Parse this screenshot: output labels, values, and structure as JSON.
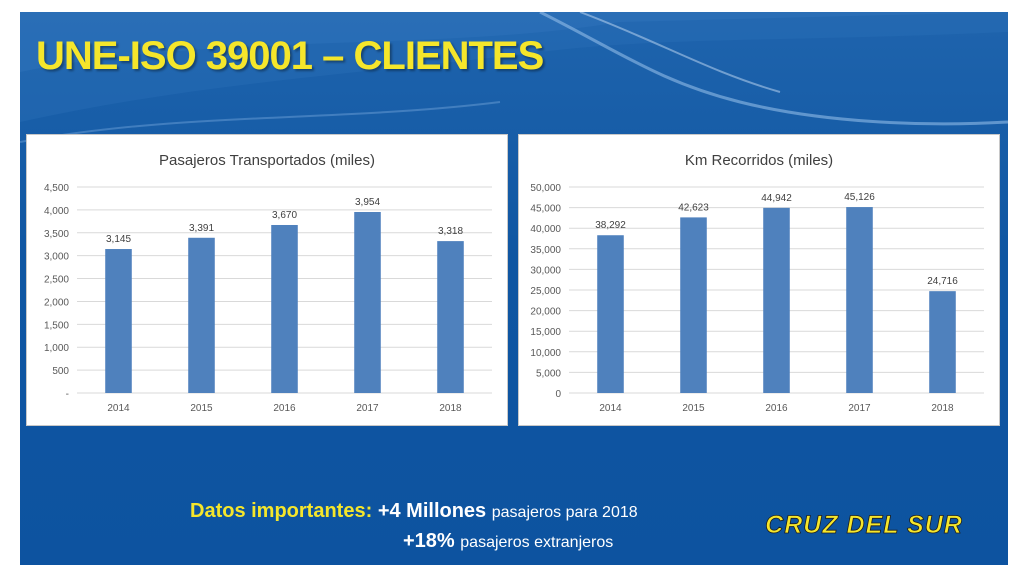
{
  "slide": {
    "title": "UNE-ISO 39001 – CLIENTES",
    "logo_text": "CRUZ DEL SUR",
    "info": {
      "label": "Datos importantes:",
      "highlight1": "+4 Millones",
      "text1": "pasajeros para 2018",
      "highlight2": "+18%",
      "text2": "pasajeros extranjeros"
    }
  },
  "colors": {
    "background": "#0f56a2",
    "title": "#f5e62b",
    "bar": "#4f81bd"
  },
  "chart_data": [
    {
      "type": "bar",
      "title": "Pasajeros Transportados (miles)",
      "categories": [
        "2014",
        "2015",
        "2016",
        "2017",
        "2018"
      ],
      "values": [
        3145,
        3391,
        3670,
        3954,
        3318
      ],
      "value_labels": [
        "3,145",
        "3,391",
        "3,670",
        "3,954",
        "3,318"
      ],
      "ylim": [
        0,
        4500
      ],
      "yticks": [
        0,
        500,
        1000,
        1500,
        2000,
        2500,
        3000,
        3500,
        4000,
        4500
      ],
      "ytick_labels": [
        "-",
        "500",
        "1,000",
        "1,500",
        "2,000",
        "2,500",
        "3,000",
        "3,500",
        "4,000",
        "4,500"
      ],
      "grid": true
    },
    {
      "type": "bar",
      "title": "Km Recorridos (miles)",
      "categories": [
        "2014",
        "2015",
        "2016",
        "2017",
        "2018"
      ],
      "values": [
        38292,
        42623,
        44942,
        45126,
        24716
      ],
      "value_labels": [
        "38,292",
        "42,623",
        "44,942",
        "45,126",
        "24,716"
      ],
      "ylim": [
        0,
        50000
      ],
      "yticks": [
        0,
        5000,
        10000,
        15000,
        20000,
        25000,
        30000,
        35000,
        40000,
        45000,
        50000
      ],
      "ytick_labels": [
        "0",
        "5,000",
        "10,000",
        "15,000",
        "20,000",
        "25,000",
        "30,000",
        "35,000",
        "40,000",
        "45,000",
        "50,000"
      ],
      "grid": true
    }
  ]
}
